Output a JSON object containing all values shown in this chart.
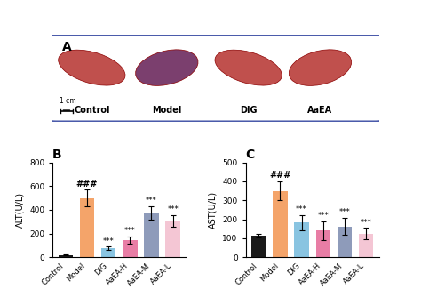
{
  "panel_A_label": "A",
  "panel_B_label": "B",
  "panel_C_label": "C",
  "categories": [
    "Control",
    "Model",
    "DIG",
    "AaEA-H",
    "AaEA-M",
    "AaEA-L"
  ],
  "alt_values": [
    20,
    500,
    75,
    145,
    375,
    305
  ],
  "alt_errors": [
    5,
    70,
    15,
    30,
    55,
    50
  ],
  "ast_values": [
    115,
    350,
    183,
    140,
    162,
    125
  ],
  "ast_errors": [
    10,
    50,
    40,
    50,
    45,
    30
  ],
  "bar_colors": [
    "#1a1a1a",
    "#f4a46a",
    "#89c4e1",
    "#e87da5",
    "#8e9bba",
    "#f4c6d4"
  ],
  "alt_ylabel": "ALT(U/L)",
  "ast_ylabel": "AST(U/L)",
  "alt_ylim": [
    0,
    800
  ],
  "ast_ylim": [
    0,
    500
  ],
  "alt_yticks": [
    0,
    200,
    400,
    600,
    800
  ],
  "ast_yticks": [
    0,
    100,
    200,
    300,
    400,
    500
  ],
  "model_annot": "###",
  "other_annot": "***",
  "border_color": "#4b5bab",
  "scale_bar_label": "1 cm",
  "panel_A_labels": [
    "Control",
    "Model",
    "DIG",
    "AaEA"
  ]
}
